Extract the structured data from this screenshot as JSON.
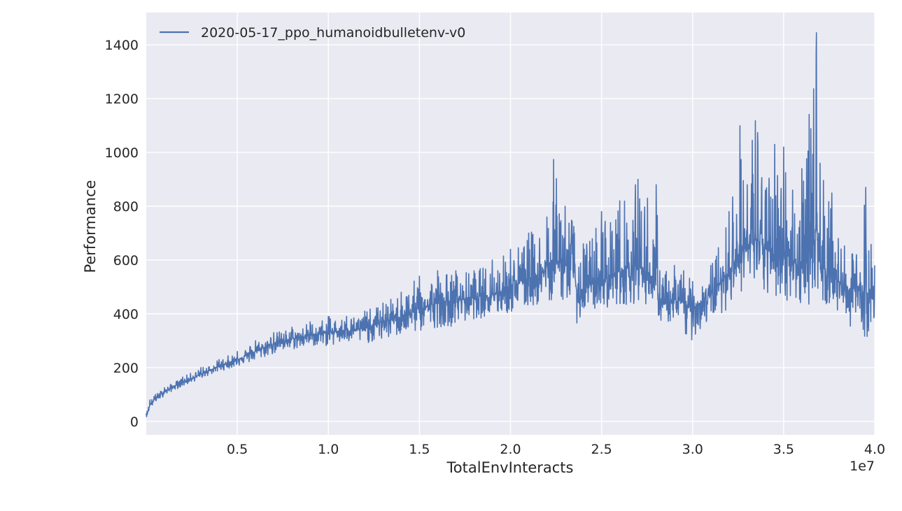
{
  "chart_data": {
    "type": "line",
    "xlabel": "TotalEnvInteracts",
    "ylabel": "Performance",
    "x_offset_label": "1e7",
    "xlim": [
      0.0,
      4.0
    ],
    "ylim": [
      -50,
      1520
    ],
    "x_ticks": [
      {
        "value": 0.5,
        "label": "0.5"
      },
      {
        "value": 1.0,
        "label": "1.0"
      },
      {
        "value": 1.5,
        "label": "1.5"
      },
      {
        "value": 2.0,
        "label": "2.0"
      },
      {
        "value": 2.5,
        "label": "2.5"
      },
      {
        "value": 3.0,
        "label": "3.0"
      },
      {
        "value": 3.5,
        "label": "3.5"
      },
      {
        "value": 4.0,
        "label": "4.0"
      }
    ],
    "y_ticks": [
      {
        "value": 0,
        "label": "0"
      },
      {
        "value": 200,
        "label": "200"
      },
      {
        "value": 400,
        "label": "400"
      },
      {
        "value": 600,
        "label": "600"
      },
      {
        "value": 800,
        "label": "800"
      },
      {
        "value": 1000,
        "label": "1000"
      },
      {
        "value": 1200,
        "label": "1200"
      },
      {
        "value": 1400,
        "label": "1400"
      }
    ],
    "grid": true,
    "legend_position": "top-left",
    "series": [
      {
        "name": "2020-05-17_ppo_humanoidbulletenv-v0",
        "color": "#4c72b0",
        "x": [
          0.0,
          0.02,
          0.05,
          0.1,
          0.15,
          0.2,
          0.3,
          0.4,
          0.5,
          0.6,
          0.7,
          0.8,
          0.9,
          1.0,
          1.1,
          1.2,
          1.3,
          1.4,
          1.5,
          1.6,
          1.7,
          1.8,
          1.9,
          2.0,
          2.1,
          2.2,
          2.25,
          2.3,
          2.35,
          2.37,
          2.4,
          2.5,
          2.6,
          2.7,
          2.8,
          2.82,
          2.9,
          2.95,
          3.0,
          3.1,
          3.2,
          3.25,
          3.3,
          3.35,
          3.4,
          3.45,
          3.5,
          3.55,
          3.6,
          3.65,
          3.68,
          3.7,
          3.75,
          3.8,
          3.85,
          3.9,
          3.95,
          4.0
        ],
        "y": [
          20,
          60,
          85,
          110,
          130,
          145,
          175,
          205,
          230,
          260,
          290,
          305,
          320,
          330,
          340,
          345,
          370,
          390,
          420,
          440,
          450,
          460,
          470,
          500,
          530,
          560,
          600,
          580,
          560,
          450,
          500,
          520,
          560,
          580,
          520,
          430,
          450,
          440,
          420,
          470,
          560,
          620,
          650,
          680,
          640,
          620,
          640,
          600,
          560,
          620,
          720,
          580,
          560,
          520,
          480,
          500,
          470,
          450
        ],
        "upper": [
          30,
          80,
          100,
          125,
          145,
          165,
          200,
          230,
          260,
          300,
          330,
          350,
          370,
          390,
          390,
          410,
          440,
          480,
          540,
          560,
          560,
          560,
          600,
          640,
          700,
          760,
          1058,
          800,
          780,
          560,
          660,
          780,
          820,
          900,
          880,
          560,
          580,
          560,
          520,
          580,
          780,
          1200,
          880,
          1320,
          860,
          1030,
          1020,
          860,
          940,
          1200,
          1445,
          960,
          920,
          680,
          640,
          620,
          870,
          580
        ],
        "lower": [
          15,
          45,
          70,
          95,
          115,
          130,
          160,
          185,
          205,
          225,
          250,
          265,
          280,
          280,
          290,
          290,
          300,
          320,
          330,
          350,
          355,
          380,
          390,
          400,
          420,
          440,
          460,
          440,
          420,
          345,
          400,
          420,
          430,
          440,
          430,
          370,
          360,
          300,
          300,
          380,
          420,
          480,
          480,
          480,
          460,
          450,
          450,
          440,
          420,
          440,
          500,
          440,
          420,
          400,
          360,
          340,
          300,
          380
        ]
      }
    ]
  }
}
